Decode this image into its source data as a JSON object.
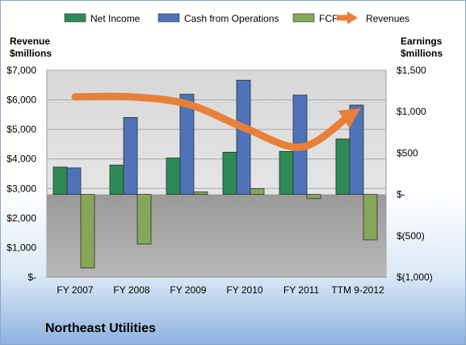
{
  "chart_data": {
    "type": "bar",
    "categories": [
      "FY 2007",
      "FY 2008",
      "FY 2009",
      "FY 2010",
      "FY 2011",
      "TTM 9-2012"
    ],
    "series": [
      {
        "name": "Net Income",
        "axis": "right",
        "kind": "bar",
        "color": "#2e8b57",
        "values": [
          330,
          355,
          440,
          510,
          520,
          670
        ]
      },
      {
        "name": "Cash from Operations",
        "axis": "right",
        "kind": "bar",
        "color": "#4f73b8",
        "values": [
          320,
          930,
          1210,
          1380,
          1200,
          1080
        ]
      },
      {
        "name": "FCF",
        "axis": "right",
        "kind": "bar",
        "color": "#86a75a",
        "values": [
          -890,
          -600,
          30,
          70,
          -50,
          -550
        ]
      },
      {
        "name": "Revenues",
        "axis": "left",
        "kind": "arrow",
        "color": "#e8803a",
        "values": [
          6100,
          6100,
          5850,
          5050,
          4400,
          5650
        ]
      }
    ],
    "left_axis": {
      "label_line1": "Revenue",
      "label_line2": "$millions",
      "min": 0,
      "max": 7000,
      "ticks": [
        0,
        1000,
        2000,
        3000,
        4000,
        5000,
        6000,
        7000
      ],
      "tick_labels": [
        "$-",
        "$1,000",
        "$2,000",
        "$3,000",
        "$4,000",
        "$5,000",
        "$6,000",
        "$7,000"
      ]
    },
    "right_axis": {
      "label_line1": "Earnings",
      "label_line2": "$millions",
      "min": -1000,
      "max": 1500,
      "ticks": [
        -1000,
        -500,
        0,
        500,
        1000,
        1500
      ],
      "tick_labels": [
        "$(1,000)",
        "$(500)",
        "$-",
        "$500",
        "$1,000",
        "$1,500"
      ]
    },
    "legend": {
      "position": "top"
    },
    "grid": true,
    "company": "Northeast Utilities"
  }
}
